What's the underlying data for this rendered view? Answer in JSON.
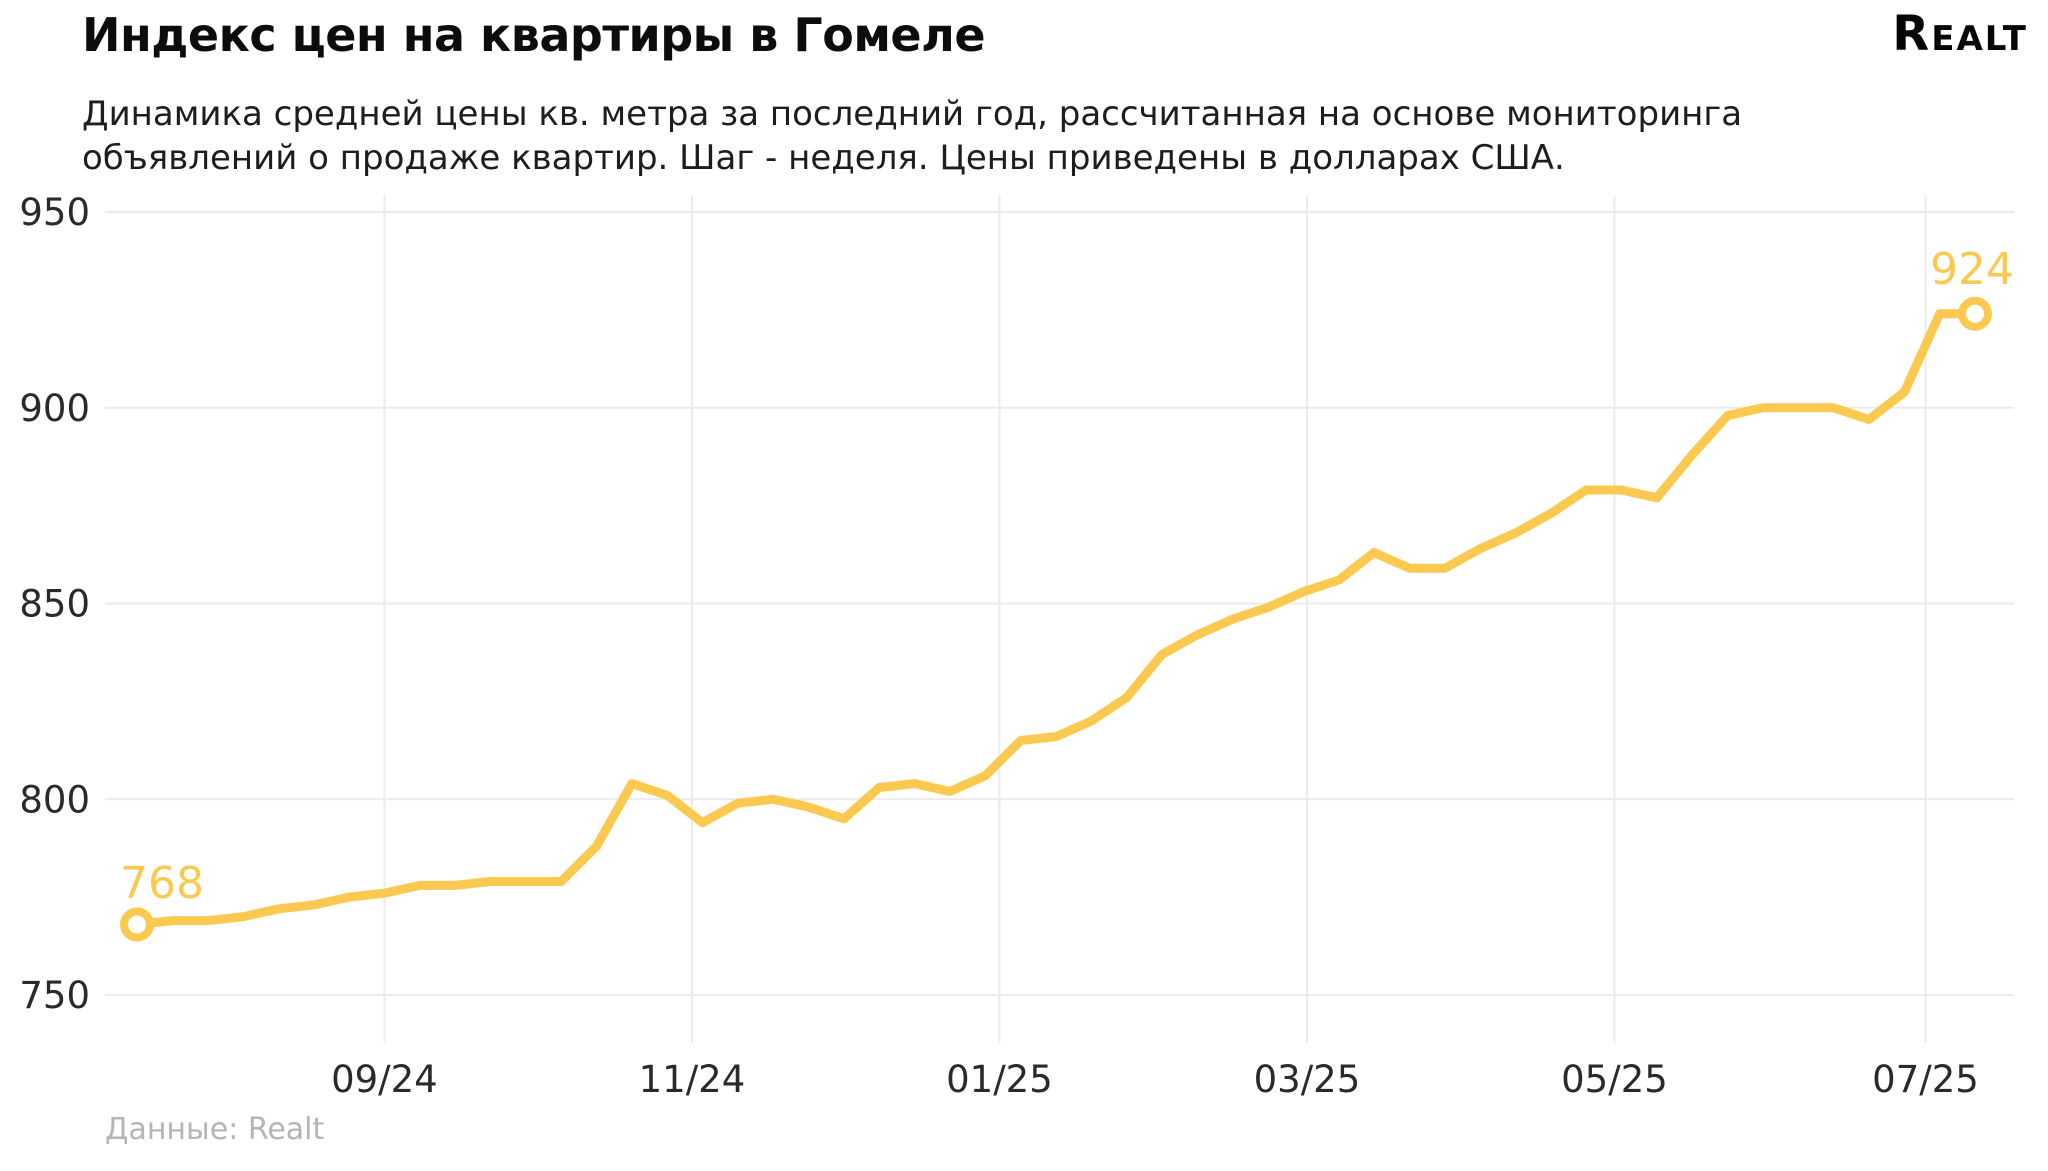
{
  "header": {
    "title": "Индекс цен на квартиры в Гомеле",
    "subtitle_line1": "Динамика средней цены кв. метра за последний год, рассчитанная на основе мониторинга",
    "subtitle_line2": "объявлений о продаже квартир. Шаг - неделя. Цены приведены в долларах США.",
    "logo_text": "Realt"
  },
  "footer": {
    "source": "Данные: Realt"
  },
  "chart_data": {
    "type": "line",
    "title": "Индекс цен на квартиры в Гомеле",
    "xlabel": "",
    "ylabel": "",
    "x_unit": "weeks (last year)",
    "values": [
      768,
      769,
      769,
      770,
      772,
      773,
      775,
      776,
      778,
      778,
      779,
      779,
      779,
      788,
      804,
      801,
      794,
      799,
      800,
      798,
      795,
      803,
      804,
      802,
      806,
      815,
      816,
      820,
      826,
      837,
      842,
      846,
      849,
      853,
      856,
      863,
      859,
      859,
      864,
      868,
      873,
      879,
      879,
      877,
      888,
      898,
      900,
      900,
      900,
      897,
      904,
      924,
      924
    ],
    "start_label": "768",
    "end_label": "924",
    "y_ticks": [
      750,
      800,
      850,
      900,
      950
    ],
    "ylim": [
      750,
      950
    ],
    "x_ticks": [
      {
        "label": "09/24",
        "pos": 7.0
      },
      {
        "label": "11/24",
        "pos": 15.7
      },
      {
        "label": "01/25",
        "pos": 24.4
      },
      {
        "label": "03/25",
        "pos": 33.1
      },
      {
        "label": "05/25",
        "pos": 41.8
      },
      {
        "label": "07/25",
        "pos": 50.6
      }
    ],
    "grid": true,
    "legend": false,
    "line_color": "#fbc950",
    "grid_color": "#ebebeb",
    "marker_fill": "#ffffff"
  }
}
